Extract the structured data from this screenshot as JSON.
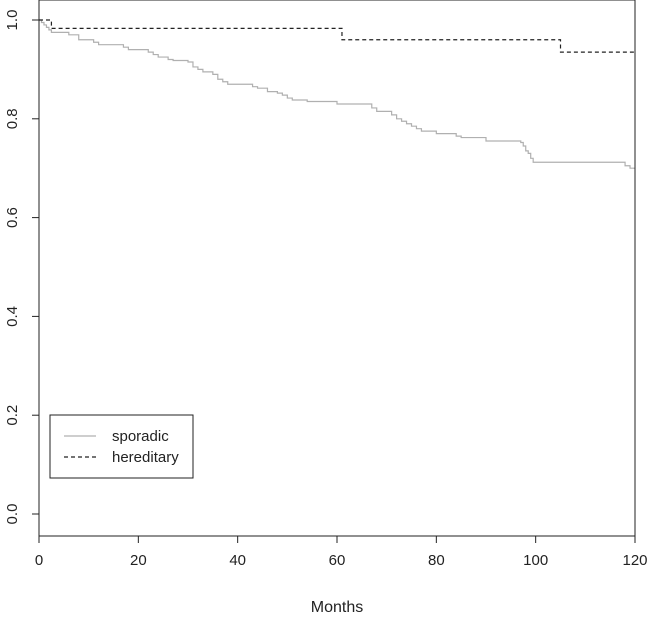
{
  "chart_data": {
    "type": "line",
    "step": true,
    "title": "",
    "xlabel": "Months",
    "ylabel": "",
    "xlim": [
      0,
      120
    ],
    "ylim": [
      0,
      1
    ],
    "x_ticks": [
      0,
      20,
      40,
      60,
      80,
      100,
      120
    ],
    "x_tick_labels": [
      "0",
      "20",
      "40",
      "60",
      "80",
      "100",
      "120"
    ],
    "y_ticks": [
      0.0,
      0.2,
      0.4,
      0.6,
      0.8,
      1.0
    ],
    "y_tick_labels": [
      "0.0",
      "0.2",
      "0.4",
      "0.6",
      "0.8",
      "1.0"
    ],
    "grid": false,
    "legend_position": "bottom-left",
    "series": [
      {
        "name": "sporadic",
        "color": "#b0b0b0",
        "dash": "solid",
        "points": [
          [
            0,
            1.0
          ],
          [
            0.5,
            0.995
          ],
          [
            1,
            0.99
          ],
          [
            1.5,
            0.985
          ],
          [
            2,
            0.98
          ],
          [
            2.5,
            0.975
          ],
          [
            6,
            0.97
          ],
          [
            8,
            0.96
          ],
          [
            11,
            0.955
          ],
          [
            12,
            0.95
          ],
          [
            17,
            0.945
          ],
          [
            18,
            0.94
          ],
          [
            22,
            0.935
          ],
          [
            23,
            0.93
          ],
          [
            24,
            0.925
          ],
          [
            26,
            0.92
          ],
          [
            27,
            0.918
          ],
          [
            30,
            0.915
          ],
          [
            31,
            0.905
          ],
          [
            32,
            0.9
          ],
          [
            33,
            0.895
          ],
          [
            35,
            0.89
          ],
          [
            36,
            0.88
          ],
          [
            37,
            0.875
          ],
          [
            38,
            0.87
          ],
          [
            43,
            0.865
          ],
          [
            44,
            0.862
          ],
          [
            46,
            0.855
          ],
          [
            48,
            0.852
          ],
          [
            49,
            0.848
          ],
          [
            50,
            0.842
          ],
          [
            51,
            0.838
          ],
          [
            54,
            0.835
          ],
          [
            60,
            0.83
          ],
          [
            67,
            0.822
          ],
          [
            68,
            0.815
          ],
          [
            71,
            0.808
          ],
          [
            72,
            0.8
          ],
          [
            73,
            0.795
          ],
          [
            74,
            0.79
          ],
          [
            75,
            0.785
          ],
          [
            76,
            0.78
          ],
          [
            77,
            0.775
          ],
          [
            80,
            0.77
          ],
          [
            84,
            0.765
          ],
          [
            85,
            0.762
          ],
          [
            90,
            0.755
          ],
          [
            97,
            0.752
          ],
          [
            97.5,
            0.745
          ],
          [
            98,
            0.735
          ],
          [
            98.5,
            0.73
          ],
          [
            99,
            0.72
          ],
          [
            99.5,
            0.712
          ],
          [
            118,
            0.705
          ],
          [
            119,
            0.7
          ],
          [
            120,
            0.7
          ]
        ]
      },
      {
        "name": "hereditary",
        "color": "#222222",
        "dash": "dashed",
        "points": [
          [
            0,
            1.0
          ],
          [
            2.5,
            0.983
          ],
          [
            61,
            0.96
          ],
          [
            105,
            0.935
          ],
          [
            120,
            0.935
          ]
        ]
      }
    ]
  }
}
